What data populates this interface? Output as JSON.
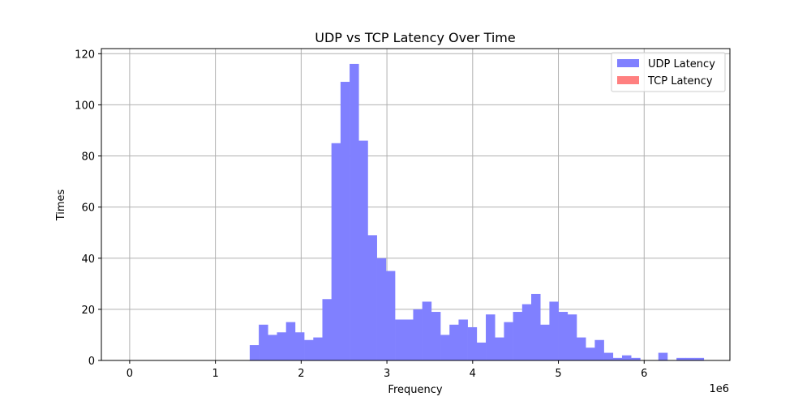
{
  "chart_data": {
    "type": "bar",
    "title": "UDP vs TCP Latency Over Time",
    "xlabel": "Frequency",
    "ylabel": "Times",
    "x_offset_label": "1e6",
    "xlim": [
      -0.33,
      7.0
    ],
    "ylim": [
      0,
      122
    ],
    "x_ticks": [
      0,
      1,
      2,
      3,
      4,
      5,
      6
    ],
    "x_tick_labels": [
      "0",
      "1",
      "2",
      "3",
      "4",
      "5",
      "6"
    ],
    "y_ticks": [
      0,
      20,
      40,
      60,
      80,
      100,
      120
    ],
    "y_tick_labels": [
      "0",
      "20",
      "40",
      "60",
      "80",
      "100",
      "120"
    ],
    "grid": true,
    "legend_position": "top-right",
    "bin_width": 0.1059,
    "series": [
      {
        "name": "UDP Latency",
        "color": "#8080ff",
        "bin_start": 1.4,
        "counts": [
          6,
          14,
          10,
          11,
          15,
          11,
          8,
          9,
          24,
          85,
          109,
          116,
          86,
          49,
          40,
          35,
          16,
          16,
          20,
          23,
          19,
          10,
          14,
          16,
          13,
          7,
          18,
          9,
          15,
          19,
          22,
          26,
          14,
          23,
          19,
          18,
          9,
          5,
          8,
          3,
          1,
          2,
          1,
          0,
          0,
          3,
          0,
          1,
          1,
          1
        ]
      },
      {
        "name": "TCP Latency",
        "color": "#ff8080",
        "bin_start": 0.0,
        "counts": []
      }
    ]
  }
}
